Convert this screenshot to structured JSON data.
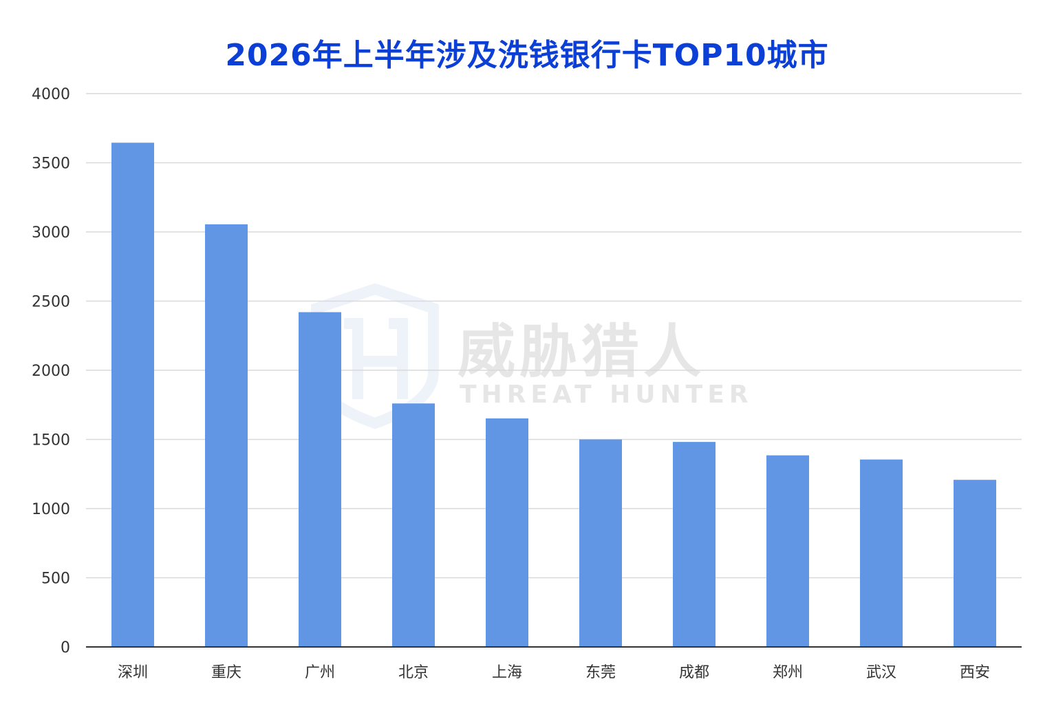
{
  "chart_data": {
    "type": "bar",
    "title": "2026年上半年涉及洗钱银行卡TOP10城市",
    "xlabel": "",
    "ylabel": "",
    "categories": [
      "深圳",
      "重庆",
      "广州",
      "北京",
      "上海",
      "东莞",
      "成都",
      "郑州",
      "武汉",
      "西安"
    ],
    "values": [
      3645,
      3055,
      2420,
      1760,
      1652,
      1500,
      1482,
      1385,
      1355,
      1208
    ],
    "ylim": [
      0,
      4000
    ],
    "yticks": [
      0,
      500,
      1000,
      1500,
      2000,
      2500,
      3000,
      3500,
      4000
    ],
    "grid": true,
    "legend": "none",
    "bar_color": "#6196e4",
    "title_color": "#0b3fd6"
  },
  "watermark": {
    "cn": "威胁猎人",
    "en": "THREAT HUNTER"
  }
}
